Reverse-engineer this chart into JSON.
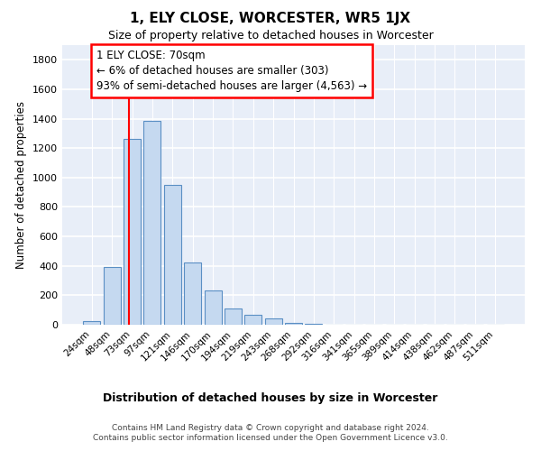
{
  "title": "1, ELY CLOSE, WORCESTER, WR5 1JX",
  "subtitle": "Size of property relative to detached houses in Worcester",
  "xlabel": "Distribution of detached houses by size in Worcester",
  "ylabel": "Number of detached properties",
  "bar_color": "#c5d9f0",
  "bar_edge_color": "#5a8fc4",
  "background_color": "#e8eef8",
  "grid_color": "#ffffff",
  "categories": [
    "24sqm",
    "48sqm",
    "73sqm",
    "97sqm",
    "121sqm",
    "146sqm",
    "170sqm",
    "194sqm",
    "219sqm",
    "243sqm",
    "268sqm",
    "292sqm",
    "316sqm",
    "341sqm",
    "365sqm",
    "389sqm",
    "414sqm",
    "438sqm",
    "462sqm",
    "487sqm",
    "511sqm"
  ],
  "values": [
    25,
    390,
    1260,
    1385,
    950,
    425,
    230,
    110,
    65,
    42,
    10,
    5,
    3,
    2,
    1,
    1,
    0,
    0,
    0,
    0,
    0
  ],
  "ylim": [
    0,
    1900
  ],
  "yticks": [
    0,
    200,
    400,
    600,
    800,
    1000,
    1200,
    1400,
    1600,
    1800
  ],
  "property_line_x": 1.82,
  "annotation_text": "1 ELY CLOSE: 70sqm\n← 6% of detached houses are smaller (303)\n93% of semi-detached houses are larger (4,563) →",
  "footer_line1": "Contains HM Land Registry data © Crown copyright and database right 2024.",
  "footer_line2": "Contains public sector information licensed under the Open Government Licence v3.0."
}
